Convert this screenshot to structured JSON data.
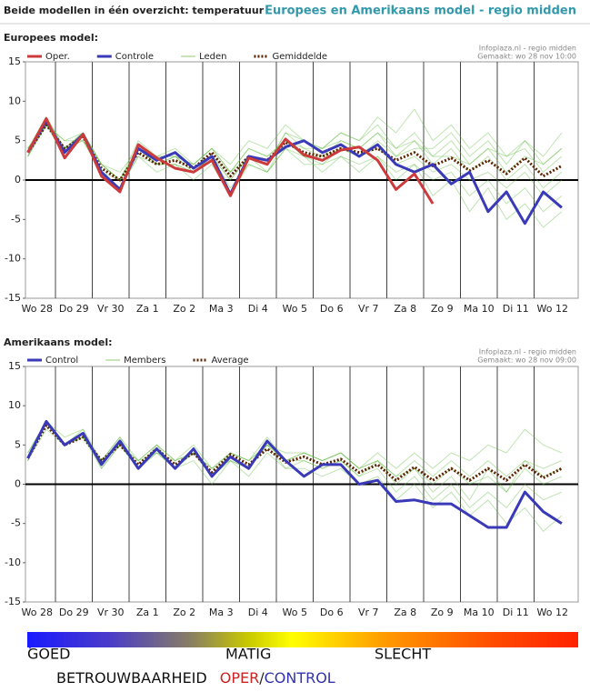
{
  "header": {
    "title": "Beide modellen in één overzicht: temperatuur",
    "subtitle": "Europees en Amerikaans model - regio midden"
  },
  "chart_data": [
    {
      "type": "line",
      "label": "Europees model:",
      "source": "Infoplaza.nl - regio midden",
      "created": "Gemaakt: wo 28 nov 10:00",
      "categories": [
        "Wo 28",
        null,
        "Do 29",
        null,
        "Vr 30",
        null,
        "Za 1",
        null,
        "Zo 2",
        null,
        "Ma 3",
        null,
        "Di 4",
        null,
        "Wo 5",
        null,
        "Do 6",
        null,
        "Vr 7",
        null,
        "Za 8",
        null,
        "Zo 9",
        null,
        "Ma 10",
        null,
        "Di 11",
        null,
        "Wo 12",
        null
      ],
      "ylim": [
        -15,
        15
      ],
      "yticks": [
        15,
        10,
        5,
        0,
        -5,
        -10,
        -15
      ],
      "grid": false,
      "series": [
        {
          "name": "Oper.",
          "color": "#cc3b3b",
          "style": "thick",
          "values": [
            3.5,
            7.8,
            2.8,
            5.8,
            0.5,
            -1.5,
            4.5,
            2.8,
            1.5,
            1.0,
            2.5,
            -2.0,
            2.8,
            2.0,
            5.2,
            3.2,
            2.5,
            3.8,
            4.2,
            2.5,
            -1.2,
            0.8,
            -3.0,
            null,
            null,
            null,
            null,
            null,
            null,
            null
          ]
        },
        {
          "name": "Controle",
          "color": "#3a3ab8",
          "style": "thick",
          "values": [
            3.5,
            7.5,
            3.5,
            5.8,
            1.0,
            -1.2,
            4.0,
            2.5,
            3.5,
            1.5,
            3.0,
            -1.8,
            3.0,
            2.5,
            4.2,
            5.0,
            3.5,
            4.5,
            3.0,
            4.5,
            2.0,
            1.0,
            2.0,
            -0.5,
            1.0,
            -4.0,
            -1.5,
            -5.5,
            -1.5,
            -3.5
          ]
        },
        {
          "name": "Leden",
          "color": "#5cb83c",
          "style": "thin",
          "values": [
            [
              3,
              7,
              4,
              6,
              2,
              0,
              4,
              3,
              3,
              2,
              4,
              1,
              4,
              3,
              5,
              4,
              3,
              5,
              4,
              6,
              3,
              5,
              2,
              4,
              1,
              3,
              0,
              2,
              -1,
              1
            ],
            [
              4,
              7,
              5,
              5,
              1,
              -1,
              3,
              2,
              2,
              1,
              3,
              0,
              3,
              2,
              6,
              4,
              4,
              6,
              5,
              7,
              4,
              6,
              3,
              5,
              2,
              4,
              1,
              3,
              2,
              4
            ],
            [
              3,
              8,
              4,
              6,
              2,
              0,
              4,
              2,
              3,
              1,
              3,
              -1,
              2,
              1,
              4,
              3,
              2,
              3,
              2,
              3,
              1,
              2,
              0,
              1,
              -2,
              0,
              -3,
              -1,
              -4,
              -2
            ],
            [
              4,
              7,
              4,
              5,
              1,
              0,
              5,
              3,
              4,
              2,
              4,
              1,
              4,
              3,
              5,
              3,
              3,
              4,
              3,
              5,
              3,
              4,
              4,
              6,
              3,
              5,
              2,
              5,
              3,
              6
            ],
            [
              3,
              7,
              3,
              6,
              1,
              -1,
              3,
              1,
              2,
              0,
              2,
              -2,
              2,
              1,
              4,
              2,
              2,
              4,
              3,
              4,
              2,
              3,
              1,
              2,
              0,
              1,
              -1,
              1,
              -2,
              0
            ],
            [
              4,
              8,
              4,
              6,
              2,
              1,
              4,
              3,
              3,
              2,
              4,
              2,
              5,
              4,
              7,
              5,
              4,
              6,
              5,
              8,
              6,
              9,
              5,
              7,
              4,
              6,
              3,
              5,
              2,
              4
            ],
            [
              3,
              7,
              4,
              5,
              1,
              -1,
              4,
              2,
              2,
              1,
              3,
              0,
              3,
              1,
              5,
              3,
              1,
              3,
              1,
              3,
              0,
              2,
              -2,
              0,
              -4,
              -1,
              -5,
              -3,
              -6,
              -4
            ],
            [
              4,
              7,
              5,
              6,
              2,
              0,
              4,
              2,
              3,
              1,
              3,
              1,
              3,
              2,
              6,
              5,
              4,
              5,
              4,
              6,
              4,
              5,
              3,
              3,
              2,
              4,
              3,
              4,
              1,
              3
            ]
          ]
        },
        {
          "name": "Gemiddelde",
          "color": "#5a2400",
          "style": "dotted",
          "values": [
            3.5,
            7,
            4,
            5.5,
            1.5,
            0,
            3.5,
            2,
            2.5,
            1.5,
            3.5,
            0.5,
            3,
            2.5,
            4.8,
            3.5,
            3,
            4,
            3.5,
            4,
            2.5,
            3.5,
            1.8,
            2.8,
            1.2,
            2.5,
            0.8,
            2.8,
            0.5,
            1.8
          ]
        }
      ]
    },
    {
      "type": "line",
      "label": "Amerikaans model:",
      "source": "Infoplaza.nl - regio midden",
      "created": "Gemaakt: wo 28 nov 09:00",
      "categories": [
        "Wo 28",
        null,
        "Do 29",
        null,
        "Vr 30",
        null,
        "Za 1",
        null,
        "Zo 2",
        null,
        "Ma 3",
        null,
        "Di 4",
        null,
        "Wo 5",
        null,
        "Do 6",
        null,
        "Vr 7",
        null,
        "Za 8",
        null,
        "Zo 9",
        null,
        "Ma 10",
        null,
        "Di 11",
        null,
        "Wo 12",
        null
      ],
      "ylim": [
        -15,
        15
      ],
      "yticks": [
        15,
        10,
        5,
        0,
        -5,
        -10,
        -15
      ],
      "grid": false,
      "series": [
        {
          "name": "Control",
          "color": "#3a3ab8",
          "style": "thick",
          "values": [
            3.3,
            8,
            5,
            6.5,
            2.5,
            5.5,
            2,
            4.5,
            2,
            4.5,
            1,
            3.5,
            2,
            5.5,
            3,
            1,
            2.5,
            2.5,
            0,
            0.5,
            -2.2,
            -2,
            -2.5,
            -2.5,
            -4,
            -5.5,
            -5.5,
            -1,
            -3.5,
            -5
          ]
        },
        {
          "name": "Members",
          "color": "#5cb83c",
          "style": "thin",
          "values": [
            [
              3,
              8,
              5,
              6,
              3,
              5,
              3,
              5,
              3,
              4,
              2,
              4,
              3,
              5,
              3,
              4,
              3,
              4,
              2,
              3,
              1,
              3,
              1,
              3,
              1,
              3,
              1,
              3,
              2,
              3
            ],
            [
              3,
              8,
              5,
              7,
              2,
              5,
              2,
              4,
              2,
              4,
              1,
              3,
              2,
              5,
              3,
              3,
              2,
              3,
              1,
              2,
              -1,
              1,
              -2,
              0,
              -3,
              -1,
              -3,
              0,
              -2,
              -1
            ],
            [
              4,
              8,
              5,
              6,
              3,
              6,
              3,
              5,
              3,
              5,
              2,
              4,
              3,
              6,
              3,
              4,
              3,
              4,
              2,
              4,
              2,
              4,
              2,
              4,
              3,
              5,
              4,
              7,
              5,
              4
            ],
            [
              3,
              7,
              5,
              6,
              2,
              5,
              2,
              4,
              2,
              3,
              0,
              3,
              1,
              4,
              2,
              2,
              1,
              2,
              0,
              1,
              -2,
              0,
              -3,
              -1,
              -4,
              -2,
              -5,
              -3,
              -6,
              -4
            ],
            [
              3,
              8,
              5,
              6,
              3,
              5,
              3,
              4,
              3,
              4,
              1,
              4,
              3,
              5,
              4,
              4,
              3,
              4,
              2,
              3,
              1,
              2,
              0,
              2,
              0,
              1,
              -1,
              2,
              0,
              1
            ],
            [
              4,
              8,
              6,
              7,
              3,
              6,
              2,
              5,
              2,
              4,
              2,
              3,
              2,
              5,
              2,
              3,
              2,
              3,
              1,
              3,
              0,
              2,
              -1,
              1,
              -2,
              2,
              -1,
              3,
              1,
              2
            ]
          ]
        },
        {
          "name": "Average",
          "color": "#5a2400",
          "style": "dotted",
          "values": [
            3.3,
            7.5,
            5,
            6,
            3,
            5,
            2.5,
            4.5,
            2.5,
            4,
            1.5,
            3.8,
            2.5,
            4.5,
            2.8,
            3.5,
            2.5,
            3.2,
            1.5,
            2.5,
            0.5,
            2.2,
            0.5,
            2,
            0.5,
            2,
            0.5,
            2.5,
            0.8,
            2
          ]
        }
      ]
    }
  ],
  "reliability": {
    "low": "GOED",
    "mid": "MATIG",
    "high": "SLECHT",
    "title": "BETROUWBAARHEID",
    "oper": "OPER",
    "sep": "/",
    "control": "CONTROL"
  }
}
